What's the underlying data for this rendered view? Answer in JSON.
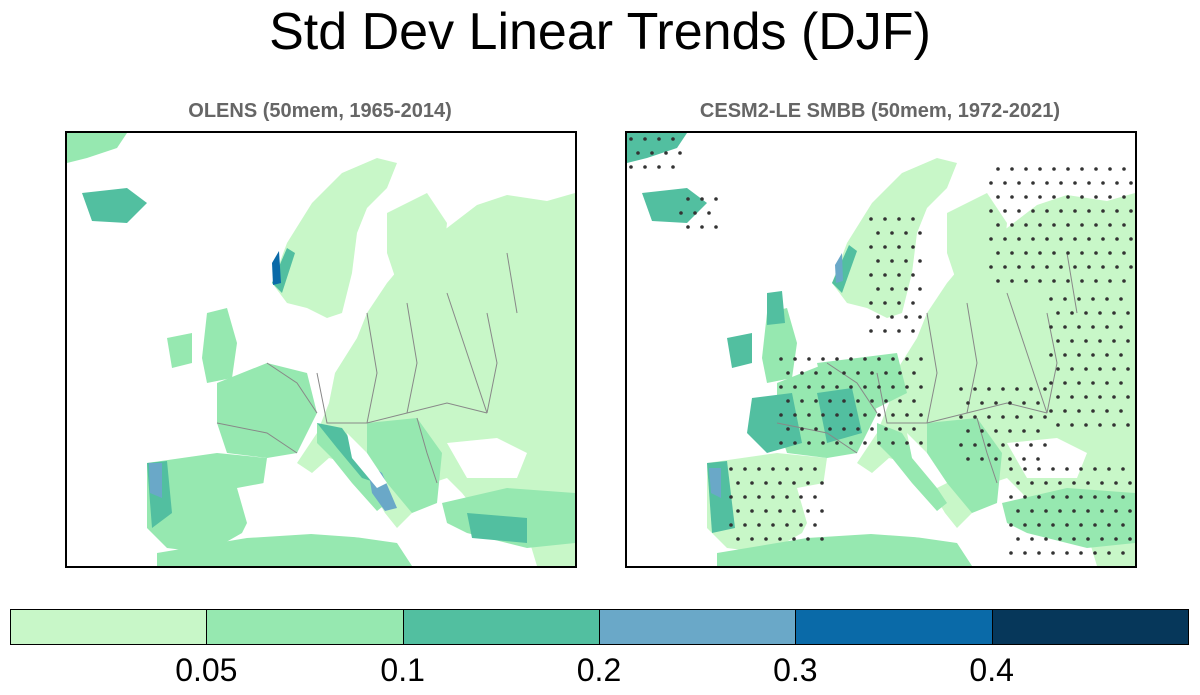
{
  "title": "Std Dev Linear Trends (DJF)",
  "panels": [
    {
      "title": "OLENS (50mem, 1965-2014)",
      "stippling": false
    },
    {
      "title": "CESM2-LE SMBB (50mem, 1972-2021)",
      "stippling": true
    }
  ],
  "colorbar": {
    "colors": [
      "#c8f7c8",
      "#96e8b0",
      "#52bfa0",
      "#6aa8c8",
      "#0a6aa8",
      "#06375a"
    ],
    "tick_labels": [
      "0.05",
      "0.1",
      "0.2",
      "0.3",
      "0.4"
    ]
  }
}
